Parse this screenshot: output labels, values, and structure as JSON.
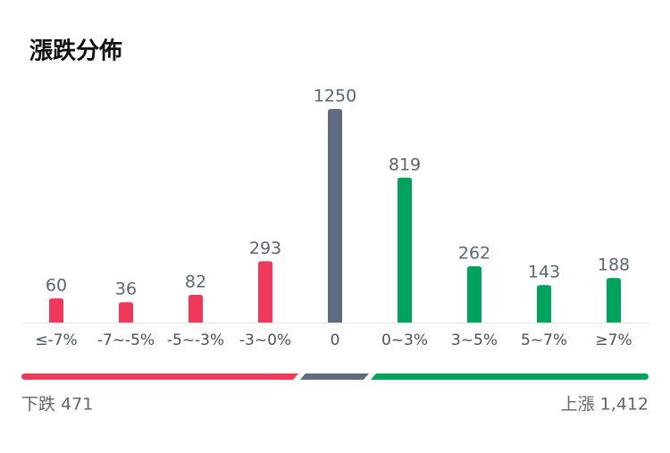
{
  "chart_data": {
    "type": "bar",
    "title": "漲跌分佈",
    "categories": [
      "≤-7%",
      "-7~-5%",
      "-5~-3%",
      "-3~0%",
      "0",
      "0~3%",
      "3~5%",
      "5~7%",
      "≥7%"
    ],
    "values": [
      60,
      36,
      82,
      293,
      1250,
      819,
      262,
      143,
      188
    ],
    "colors": [
      "#f0385a",
      "#f0385a",
      "#f0385a",
      "#f0385a",
      "#5f6b80",
      "#00a35c",
      "#00a35c",
      "#00a35c",
      "#00a35c"
    ],
    "ylim": [
      -92,
      1250
    ],
    "annotations": [
      "下跌 471",
      "上漲 1,412"
    ]
  }
}
